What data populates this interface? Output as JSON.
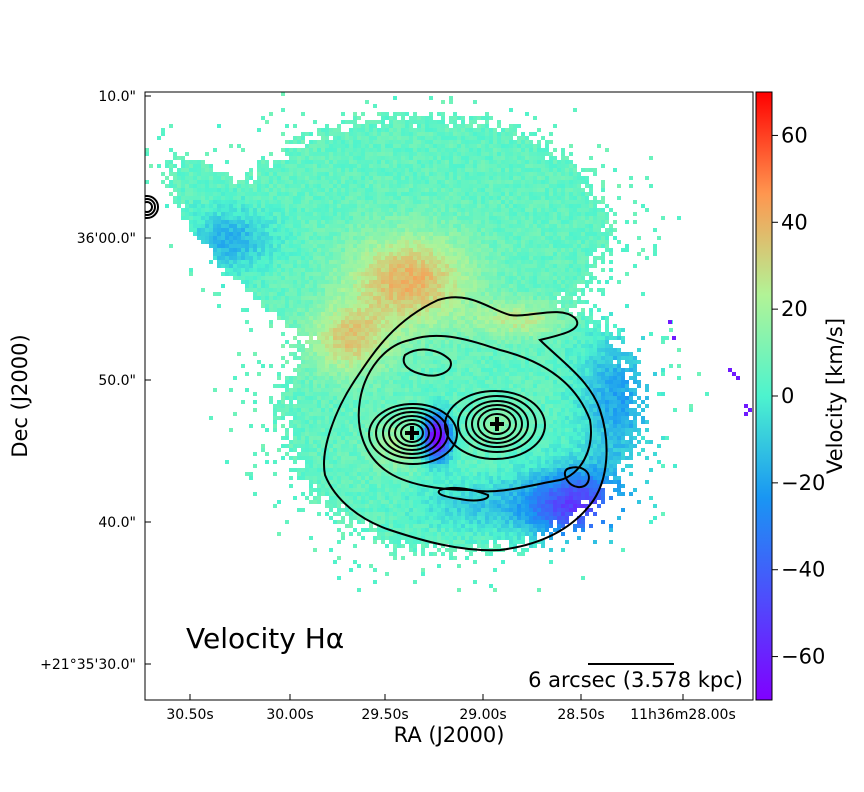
{
  "chart_data": {
    "type": "heatmap",
    "title": "Velocity Hα",
    "xlabel": "RA (J2000)",
    "ylabel": "Dec (J2000)",
    "x_ticks": [
      "30.50s",
      "30.00s",
      "29.50s",
      "29.00s",
      "28.50s",
      "11h36m28.00s"
    ],
    "y_ticks": [
      "10.0\"",
      "36'00.0\"",
      "50.0\"",
      "40.0\"",
      "+21°35'30.0\""
    ],
    "colorbar": {
      "label": "Velocity [km/s]",
      "range": [
        -70,
        70
      ],
      "ticks": [
        60,
        40,
        20,
        0,
        -20,
        -40,
        -60
      ],
      "tick_labels": [
        "60",
        "40",
        "20",
        "0",
        "−20",
        "−40",
        "−60"
      ],
      "colormap": "rainbow"
    },
    "scale_bar": {
      "label": "6 arcsec (3.578 kpc)"
    },
    "markers": [
      {
        "name": "nucleus-east",
        "symbol": "plus"
      },
      {
        "name": "nucleus-west",
        "symbol": "plus"
      }
    ],
    "contours": "continuum intensity (black)",
    "grid": false
  }
}
